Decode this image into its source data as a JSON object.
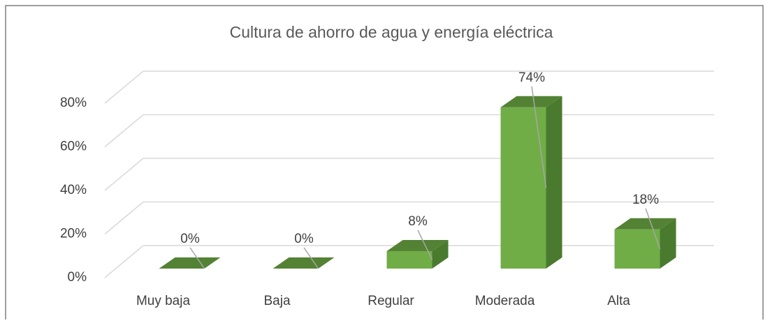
{
  "chart_data": {
    "type": "bar3d",
    "title": "Cultura de ahorro de agua y energía eléctrica",
    "categories": [
      "Muy baja",
      "Baja",
      "Regular",
      "Moderada",
      "Alta"
    ],
    "values": [
      0,
      0,
      8,
      74,
      18
    ],
    "value_labels": [
      "0%",
      "0%",
      "8%",
      "74%",
      "18%"
    ],
    "color": "#70ad47",
    "ylim": [
      0,
      80
    ],
    "yticks": [
      {
        "value": 0,
        "label": "0%"
      },
      {
        "value": 20,
        "label": "20%"
      },
      {
        "value": 40,
        "label": "40%"
      },
      {
        "value": 60,
        "label": "60%"
      },
      {
        "value": 80,
        "label": "80%"
      }
    ],
    "grid": true
  }
}
